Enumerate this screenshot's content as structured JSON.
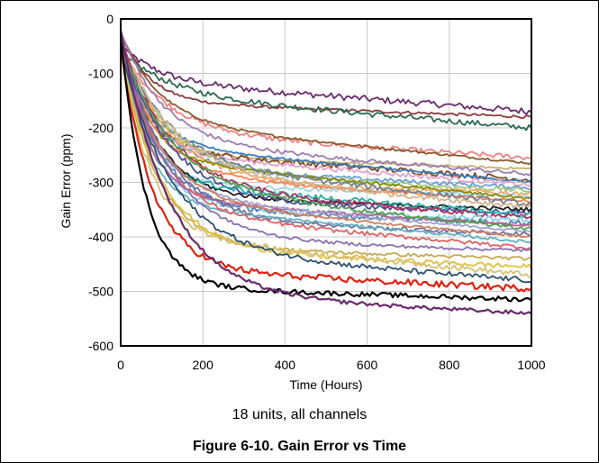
{
  "chart_data": {
    "type": "line",
    "title": "",
    "subtitle": "18 units, all channels",
    "caption": "Figure 6-10. Gain Error vs Time",
    "xlabel": "Time (Hours)",
    "ylabel": "Gain Error (ppm)",
    "xlim": [
      0,
      1000
    ],
    "ylim": [
      -600,
      0
    ],
    "xticks": [
      "0",
      "200",
      "400",
      "600",
      "800",
      "1000"
    ],
    "yticks": [
      "0",
      "-100",
      "-200",
      "-300",
      "-400",
      "-500",
      "-600"
    ],
    "grid": true,
    "legend": "none",
    "series": [
      {
        "color": "#6a2a6e",
        "final": -170
      },
      {
        "color": "#8b3a3a",
        "final": -180
      },
      {
        "color": "#2d6a4f",
        "final": -200
      },
      {
        "color": "#f08080",
        "final": -255
      },
      {
        "color": "#8b5a2b",
        "final": -265
      },
      {
        "color": "#c8b06a",
        "final": -275
      },
      {
        "color": "#9e7bb5",
        "final": -285
      },
      {
        "color": "#7a4a20",
        "final": -295
      },
      {
        "color": "#3a7dbf",
        "final": -300
      },
      {
        "color": "#e8a0c8",
        "final": -305
      },
      {
        "color": "#66a0d8",
        "final": -310
      },
      {
        "color": "#a0c878",
        "final": -315
      },
      {
        "color": "#f4a460",
        "final": -320
      },
      {
        "color": "#9bd3e0",
        "final": -325
      },
      {
        "color": "#8b8b00",
        "final": -330
      },
      {
        "color": "#ff7f50",
        "final": -335
      },
      {
        "color": "#708090",
        "final": -340
      },
      {
        "color": "#d2b48c",
        "final": -345
      },
      {
        "color": "#1a1a1a",
        "final": -350
      },
      {
        "color": "#4b4b9b",
        "final": -355
      },
      {
        "color": "#20b2aa",
        "final": -360
      },
      {
        "color": "#b03060",
        "final": -365
      },
      {
        "color": "#87ceeb",
        "final": -370
      },
      {
        "color": "#5f7fb0",
        "final": -375
      },
      {
        "color": "#c06090",
        "final": -380
      },
      {
        "color": "#50a050",
        "final": -385
      },
      {
        "color": "#a0a0d0",
        "final": -390
      },
      {
        "color": "#7070a0",
        "final": -395
      },
      {
        "color": "#d08060",
        "final": -400
      },
      {
        "color": "#60b0c0",
        "final": -410
      },
      {
        "color": "#e06060",
        "final": -420
      },
      {
        "color": "#8a70b0",
        "final": -425
      },
      {
        "color": "#c8a850",
        "final": -440
      },
      {
        "color": "#e0c040",
        "final": -455
      },
      {
        "color": "#d8c070",
        "final": -470
      },
      {
        "color": "#2a5070",
        "final": -480
      },
      {
        "color": "#e02010",
        "final": -495
      },
      {
        "color": "#000000",
        "final": -515
      },
      {
        "color": "#6a2a6e",
        "final": -540
      }
    ]
  }
}
